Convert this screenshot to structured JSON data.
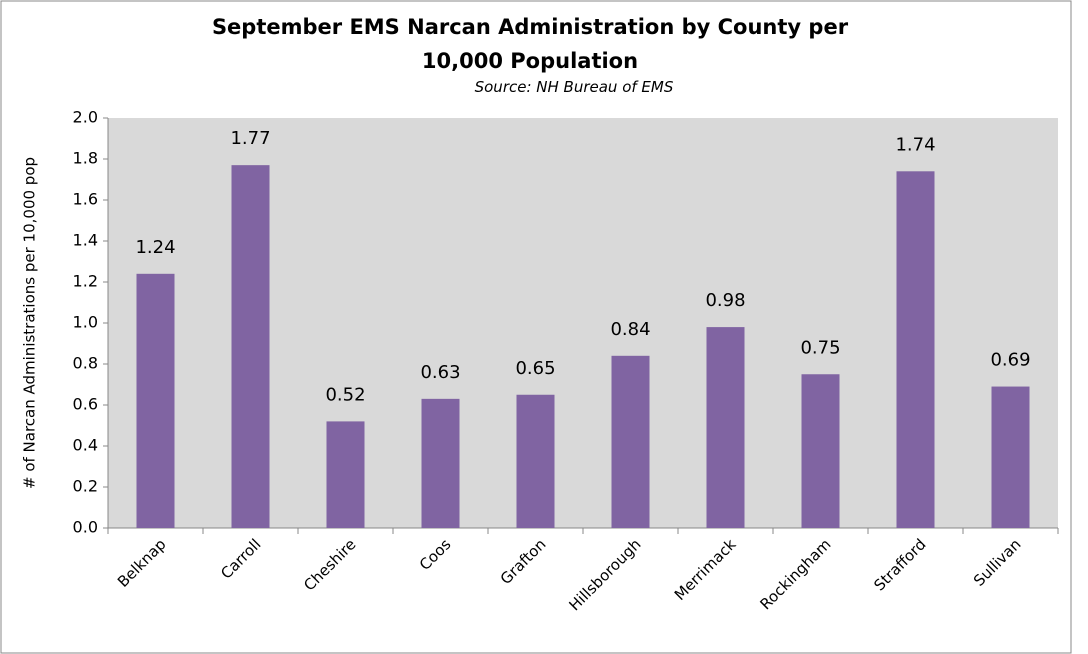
{
  "chart_data": {
    "type": "bar",
    "title": "September EMS Narcan Administration by County per 10,000 Population",
    "subtitle": "Source: NH Bureau of EMS",
    "y_label": "# of Narcan Administrations per 10,000 pop",
    "categories": [
      "Belknap",
      "Carroll",
      "Cheshire",
      "Coos",
      "Grafton",
      "Hillsborough",
      "Merrimack",
      "Rockingham",
      "Strafford",
      "Sullivan"
    ],
    "values": [
      1.24,
      1.77,
      0.52,
      0.63,
      0.65,
      0.84,
      0.98,
      0.75,
      1.74,
      0.69
    ],
    "color": "#8064a2",
    "ylim": [
      0,
      2
    ],
    "yticks": [
      {
        "value": 0,
        "label": "0.0"
      },
      {
        "value": 0.2,
        "label": "0.2"
      },
      {
        "value": 0.4,
        "label": "0.4"
      },
      {
        "value": 0.6,
        "label": "0.6"
      },
      {
        "value": 0.8,
        "label": "0.8"
      },
      {
        "value": 1,
        "label": "1.0"
      },
      {
        "value": 1.2,
        "label": "1.2"
      },
      {
        "value": 1.4,
        "label": "1.4"
      },
      {
        "value": 1.6,
        "label": "1.6"
      },
      {
        "value": 1.8,
        "label": "1.8"
      },
      {
        "value": 2,
        "label": "2.0"
      }
    ],
    "grid": false
  }
}
